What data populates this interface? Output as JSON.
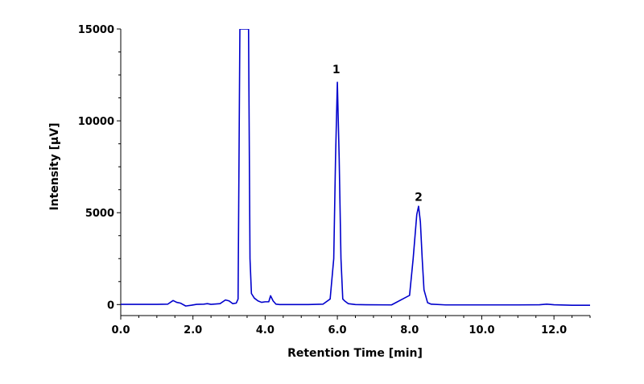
{
  "chart_data": {
    "type": "line",
    "title": "",
    "xlabel": "Retention Time [min]",
    "ylabel": "Intensity [µV]",
    "xlim": [
      0,
      13
    ],
    "ylim": [
      -600,
      15000
    ],
    "x_ticks": [
      0,
      2,
      4,
      6,
      8,
      10,
      12
    ],
    "x_tick_labels": [
      "0.0",
      "2.0",
      "4.0",
      "6.0",
      "8.0",
      "10.0",
      "12.0"
    ],
    "y_ticks": [
      0,
      5000,
      10000,
      15000
    ],
    "y_tick_labels": [
      "0",
      "5000",
      "10000",
      "15000"
    ],
    "grid": false,
    "line_color": "#0000cc",
    "series": [
      {
        "x": [
          0.0,
          1.0,
          1.3,
          1.45,
          1.55,
          1.65,
          1.8,
          1.95,
          2.1,
          2.3,
          2.4,
          2.5,
          2.75,
          2.9,
          3.0,
          3.1,
          3.2,
          3.25,
          3.3,
          3.34,
          3.38,
          3.45,
          3.5,
          3.54,
          3.58,
          3.62,
          3.7,
          3.8,
          3.9,
          4.0,
          4.1,
          4.15,
          4.22,
          4.3,
          4.4,
          4.8,
          5.2,
          5.6,
          5.8,
          5.9,
          5.95,
          6.0,
          6.05,
          6.1,
          6.15,
          6.2,
          6.3,
          6.5,
          6.8,
          7.5,
          8.0,
          8.1,
          8.2,
          8.25,
          8.3,
          8.35,
          8.4,
          8.5,
          8.6,
          9.0,
          10.0,
          11.0,
          11.6,
          11.8,
          12.0,
          12.5,
          13.0
        ],
        "y": [
          10,
          10,
          20,
          220,
          120,
          80,
          -80,
          -40,
          10,
          20,
          50,
          10,
          50,
          250,
          200,
          50,
          80,
          300,
          15000,
          15000,
          15000,
          15000,
          15000,
          15000,
          2500,
          600,
          350,
          200,
          120,
          150,
          150,
          480,
          200,
          20,
          0,
          0,
          0,
          20,
          300,
          2500,
          8000,
          12100,
          8000,
          2500,
          300,
          200,
          50,
          0,
          -10,
          -20,
          500,
          2500,
          4900,
          5350,
          4500,
          2500,
          800,
          100,
          20,
          -20,
          -20,
          -20,
          -10,
          20,
          -10,
          -40,
          -40
        ]
      }
    ],
    "annotations": [
      {
        "text": "1",
        "x": 5.97,
        "y": 12600
      },
      {
        "text": "2",
        "x": 8.25,
        "y": 5650
      }
    ]
  }
}
